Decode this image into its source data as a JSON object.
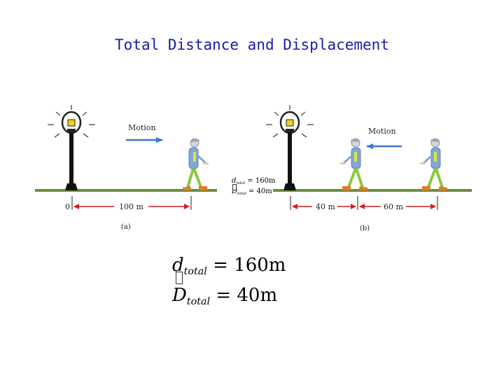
{
  "title": "Total Distance and Displacement",
  "panel_a": {
    "motion_label": "Motion",
    "origin_label": "0",
    "distance_label": "100 m",
    "caption": "(a)"
  },
  "panel_b": {
    "motion_label": "Motion",
    "left_label": "40 m",
    "right_label": "60 m",
    "caption": "(b)"
  },
  "small_equations": {
    "d_symbol": "d",
    "d_sub": "total",
    "d_value": "= 160m",
    "D_symbol": "D",
    "D_sub": "total",
    "D_value": "= 40m"
  },
  "equations": {
    "d_symbol": "d",
    "d_sub": "total",
    "d_value": "= 160m",
    "D_symbol": "D",
    "D_sub": "total",
    "D_value": "= 40m"
  },
  "colors": {
    "title": "#1a1aa8",
    "ground": "#6b8e3a",
    "arrow_red": "#cc2222",
    "arrow_blue": "#3a78c8",
    "walker_shirt": "#7fa8d8",
    "walker_legs": "#8cc63f",
    "walker_shoes": "#e07b2a"
  },
  "icons": [
    "street-lamp-icon",
    "walking-person-icon"
  ]
}
